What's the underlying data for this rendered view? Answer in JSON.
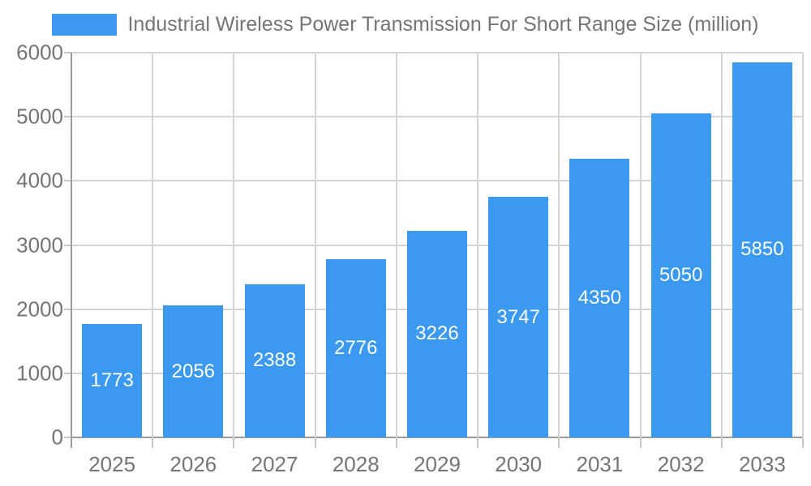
{
  "legend": {
    "label": "Industrial Wireless Power Transmission For Short Range Size (million)"
  },
  "chart_data": {
    "type": "bar",
    "title": "Industrial Wireless Power Transmission For Short Range Size (million)",
    "categories": [
      "2025",
      "2026",
      "2027",
      "2028",
      "2029",
      "2030",
      "2031",
      "2032",
      "2033"
    ],
    "values": [
      1773,
      2056,
      2388,
      2776,
      3226,
      3747,
      4350,
      5050,
      5850
    ],
    "xlabel": "",
    "ylabel": "",
    "ylim": [
      0,
      6000
    ],
    "ytick_step": 1000,
    "ytick_labels": [
      "0",
      "1000",
      "2000",
      "3000",
      "4000",
      "5000",
      "6000"
    ],
    "grid": true,
    "legend_position": "top",
    "value_labels": "inside-white"
  },
  "colors": {
    "bar": "#3B99EF",
    "grid": "#D4D4D4",
    "axis": "#9C9C9C",
    "tick": "#C6C6C6",
    "text": "#757575",
    "value_label": "#FFFFFF",
    "background": "#FFFFFF"
  }
}
